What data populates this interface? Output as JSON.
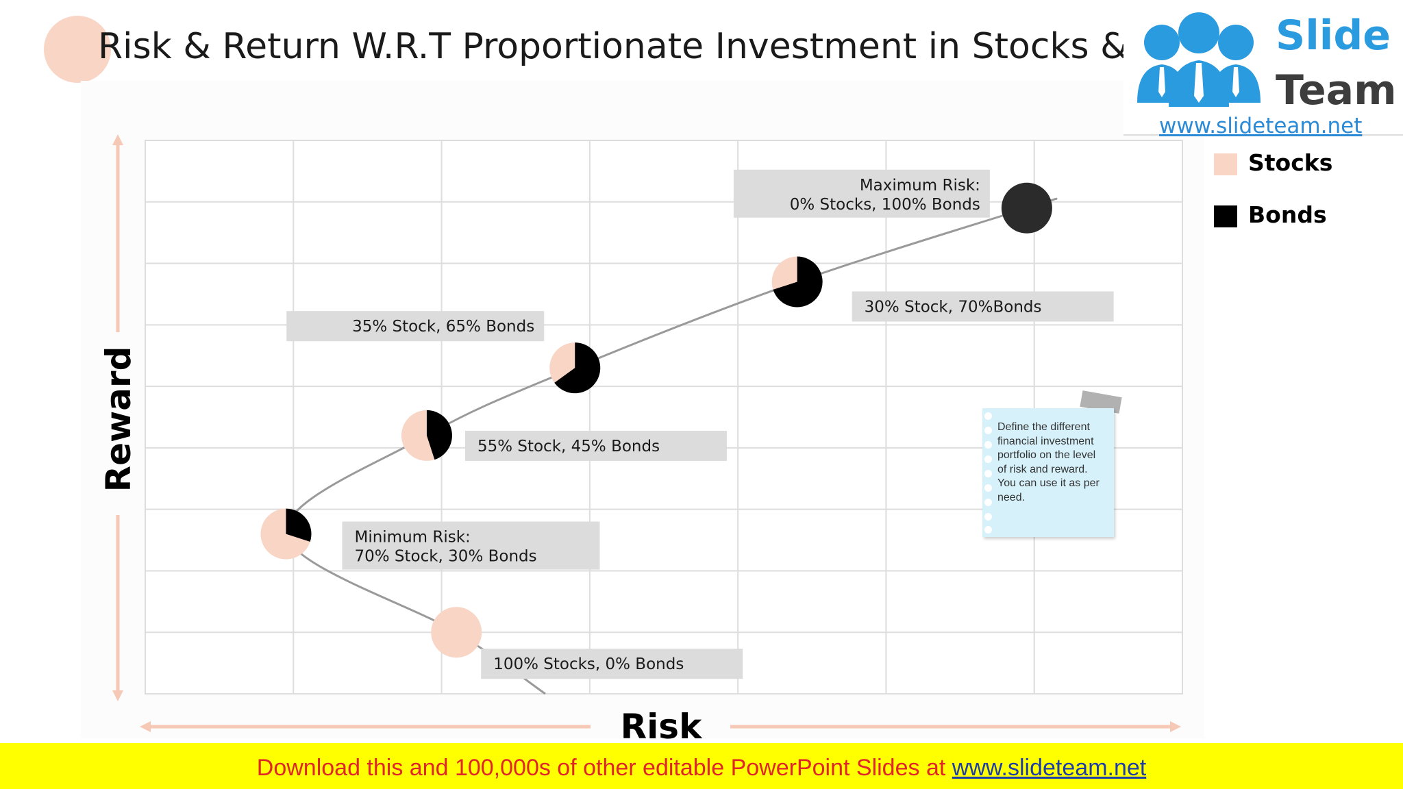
{
  "title": "Risk & Return W.R.T Proportionate Investment in Stocks & Bonds",
  "logo": {
    "word1": "Slide",
    "word2": "Team",
    "url": "www.slideteam.net"
  },
  "colors": {
    "stocks": "#f9d5c6",
    "bonds": "#000000",
    "axis_arrow": "#f6c8b6",
    "grid": "#dddddd",
    "curve": "#9a9a9a",
    "label_box": "#dcdcdc",
    "note": "#d6f1fa",
    "banner": "#ffff00",
    "banner_text": "#e0262a"
  },
  "chart_data": {
    "type": "scatter",
    "xlabel": "Risk",
    "ylabel": "Reward",
    "xlim": [
      0,
      7
    ],
    "ylim": [
      0,
      9
    ],
    "grid": true,
    "legend": {
      "placement": "right",
      "entries": [
        {
          "name": "Stocks",
          "color_key": "stocks"
        },
        {
          "name": "Bonds",
          "color_key": "bonds"
        }
      ]
    },
    "points": [
      {
        "x": 2.1,
        "y": 1.0,
        "stocks_pct": 100,
        "bonds_pct": 0,
        "label": "100% Stocks, 0% Bonds"
      },
      {
        "x": 0.95,
        "y": 2.6,
        "stocks_pct": 70,
        "bonds_pct": 30,
        "label": "Minimum Risk:\n70% Stock, 30% Bonds"
      },
      {
        "x": 1.9,
        "y": 4.2,
        "stocks_pct": 55,
        "bonds_pct": 45,
        "label": "55% Stock, 45% Bonds"
      },
      {
        "x": 2.9,
        "y": 5.3,
        "stocks_pct": 35,
        "bonds_pct": 65,
        "label": "35% Stock, 65% Bonds"
      },
      {
        "x": 4.4,
        "y": 6.7,
        "stocks_pct": 30,
        "bonds_pct": 70,
        "label": "30% Stock, 70%Bonds"
      },
      {
        "x": 5.95,
        "y": 7.9,
        "stocks_pct": 0,
        "bonds_pct": 100,
        "label": "Maximum Risk:\n0% Stocks, 100% Bonds"
      }
    ]
  },
  "note": {
    "text": "Define the different financial investment portfolio on the level of risk and reward. You can use it as per need."
  },
  "banner": {
    "text": "Download this and 100,000s of other editable PowerPoint Slides at ",
    "link": "www.slideteam.net"
  }
}
